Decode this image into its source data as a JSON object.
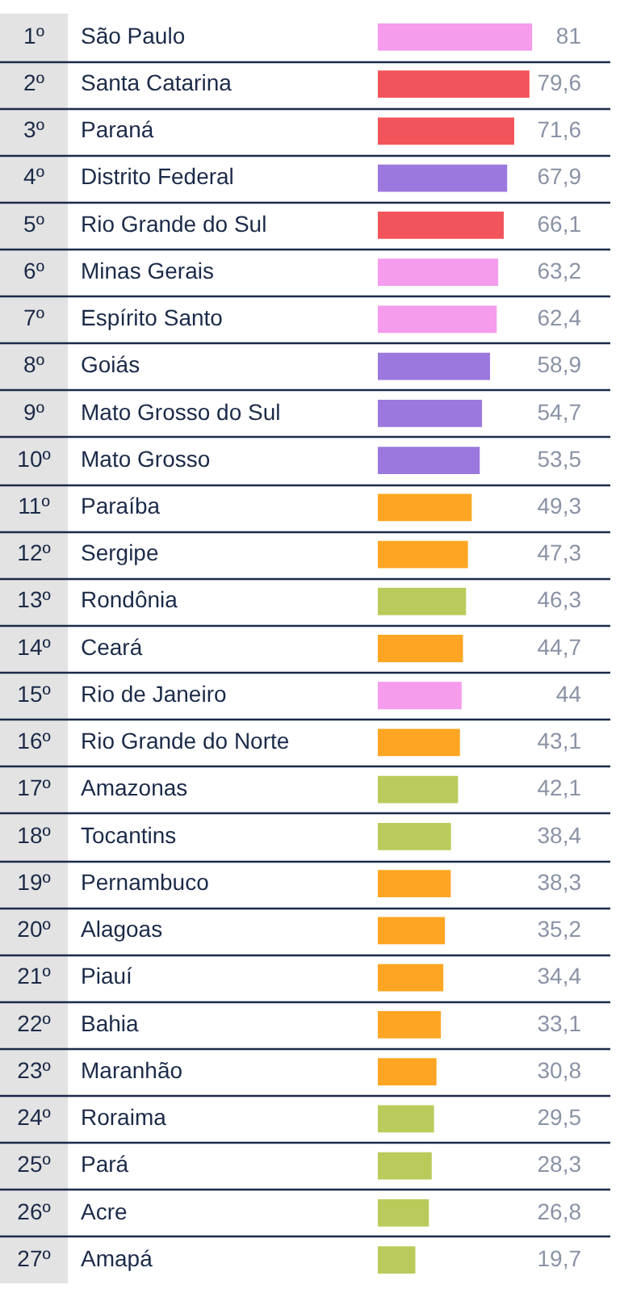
{
  "chart_data": {
    "type": "bar",
    "orientation": "horizontal",
    "categories": [
      "São Paulo",
      "Santa Catarina",
      "Paraná",
      "Distrito Federal",
      "Rio Grande do Sul",
      "Minas Gerais",
      "Espírito Santo",
      "Goiás",
      "Mato Grosso do Sul",
      "Mato Grosso",
      "Paraíba",
      "Sergipe",
      "Rondônia",
      "Ceará",
      "Rio de Janeiro",
      "Rio Grande do Norte",
      "Amazonas",
      "Tocantins",
      "Pernambuco",
      "Alagoas",
      "Piauí",
      "Bahia",
      "Maranhão",
      "Roraima",
      "Pará",
      "Acre",
      "Amapá"
    ],
    "values": [
      81,
      79.6,
      71.6,
      67.9,
      66.1,
      63.2,
      62.4,
      58.9,
      54.7,
      53.5,
      49.3,
      47.3,
      46.3,
      44.7,
      44,
      43.1,
      42.1,
      38.4,
      38.3,
      35.2,
      34.4,
      33.1,
      30.8,
      29.5,
      28.3,
      26.8,
      19.7
    ],
    "colors": [
      "#f59ced",
      "#f2545b",
      "#f2545b",
      "#9b78dd",
      "#f2545b",
      "#f59ced",
      "#f59ced",
      "#9b78dd",
      "#9b78dd",
      "#9b78dd",
      "#fea623",
      "#fea623",
      "#bacb5b",
      "#fea623",
      "#f59ced",
      "#fea623",
      "#bacb5b",
      "#bacb5b",
      "#fea623",
      "#fea623",
      "#fea623",
      "#fea623",
      "#fea623",
      "#bacb5b",
      "#bacb5b",
      "#bacb5b",
      "#bacb5b"
    ],
    "value_labels": [
      "81",
      "79,6",
      "71,6",
      "67,9",
      "66,1",
      "63,2",
      "62,4",
      "58,9",
      "54,7",
      "53,5",
      "49,3",
      "47,3",
      "46,3",
      "44,7",
      "44",
      "43,1",
      "42,1",
      "38,4",
      "38,3",
      "35,2",
      "34,4",
      "33,1",
      "30,8",
      "29,5",
      "28,3",
      "26,8",
      "19,7"
    ],
    "annotations": [
      "1º",
      "2º",
      "3º",
      "4º",
      "5º",
      "6º",
      "7º",
      "8º",
      "9º",
      "10º",
      "11º",
      "12º",
      "13º",
      "14º",
      "15º",
      "16º",
      "17º",
      "18º",
      "19º",
      "20º",
      "21º",
      "22º",
      "23º",
      "24º",
      "25º",
      "26º",
      "27º"
    ],
    "tick_labels": "y",
    "grid": "y"
  }
}
